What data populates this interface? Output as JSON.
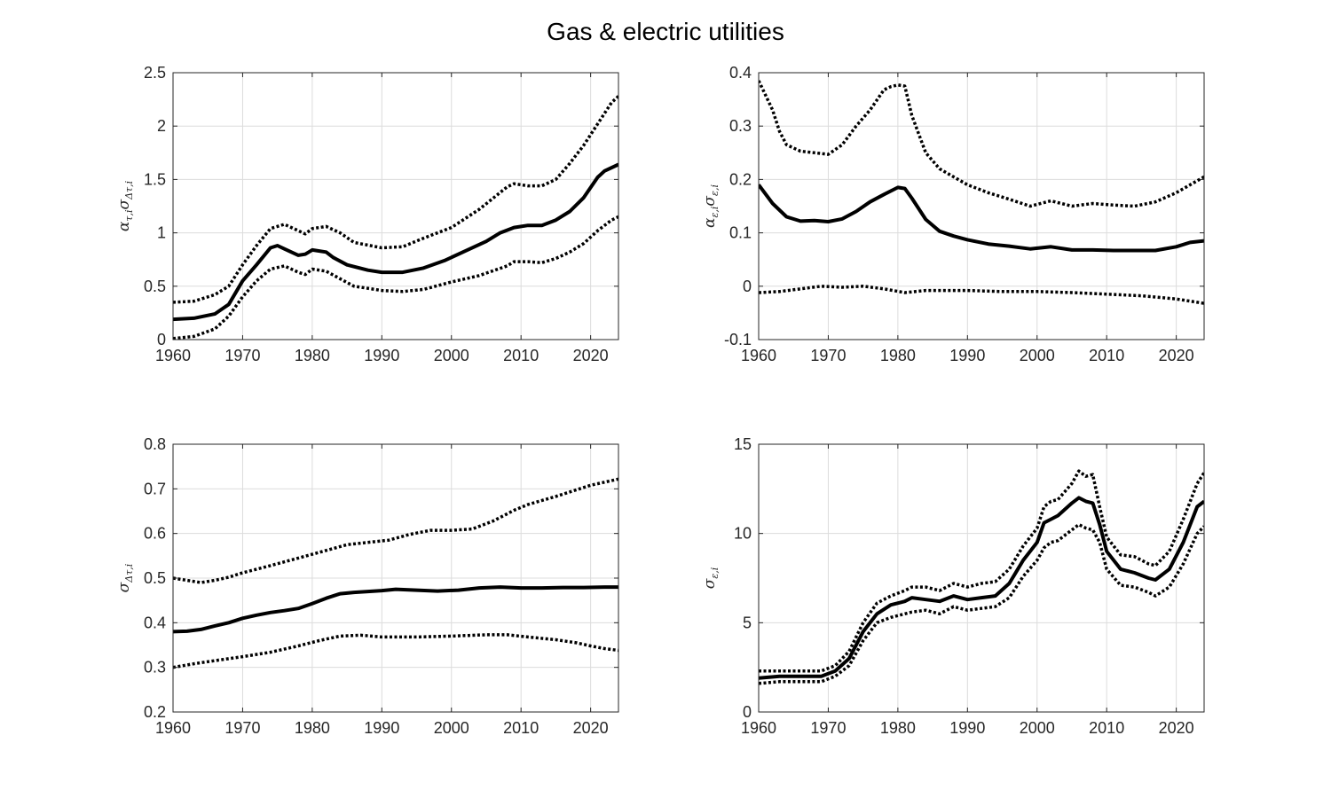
{
  "figure": {
    "title": "Gas & electric utilities"
  },
  "chart_data": [
    {
      "type": "line",
      "ylabel": "α_{τ,i} σ_{Δτ,i}",
      "ylabel_parts": [
        [
          "α",
          ""
        ],
        [
          "τ,i",
          "sub"
        ],
        [
          "σ",
          ""
        ],
        [
          "Δτ,i",
          "sub"
        ]
      ],
      "xlim": [
        1960,
        2024
      ],
      "ylim": [
        0,
        2.5
      ],
      "xticks": [
        1960,
        1970,
        1980,
        1990,
        2000,
        2010,
        2020
      ],
      "yticks": [
        0,
        0.5,
        1,
        1.5,
        2,
        2.5
      ],
      "ytick_labels": [
        "0",
        "0.5",
        "1",
        "1.5",
        "2",
        "2.5"
      ],
      "grid": true,
      "series": [
        {
          "style": "solid",
          "x": [
            1960,
            1963,
            1966,
            1968,
            1970,
            1972,
            1974,
            1975,
            1976,
            1978,
            1979,
            1980,
            1982,
            1983,
            1985,
            1988,
            1990,
            1993,
            1996,
            1999,
            2002,
            2005,
            2007,
            2009,
            2011,
            2013,
            2015,
            2017,
            2019,
            2021,
            2022,
            2024
          ],
          "y": [
            0.19,
            0.2,
            0.24,
            0.33,
            0.55,
            0.7,
            0.86,
            0.88,
            0.85,
            0.79,
            0.8,
            0.84,
            0.82,
            0.77,
            0.7,
            0.65,
            0.63,
            0.63,
            0.67,
            0.74,
            0.83,
            0.92,
            1.0,
            1.05,
            1.07,
            1.07,
            1.12,
            1.2,
            1.33,
            1.52,
            1.58,
            1.64
          ]
        },
        {
          "style": "dotted",
          "x": [
            1960,
            1963,
            1966,
            1968,
            1970,
            1972,
            1974,
            1976,
            1978,
            1979,
            1980,
            1982,
            1984,
            1986,
            1990,
            1993,
            1996,
            2000,
            2004,
            2008,
            2009,
            2011,
            2013,
            2015,
            2017,
            2019,
            2021,
            2023,
            2024
          ],
          "y": [
            0.35,
            0.36,
            0.42,
            0.5,
            0.7,
            0.88,
            1.04,
            1.08,
            1.02,
            0.99,
            1.04,
            1.06,
            1.0,
            0.91,
            0.86,
            0.87,
            0.95,
            1.05,
            1.22,
            1.43,
            1.46,
            1.44,
            1.44,
            1.5,
            1.65,
            1.82,
            2.02,
            2.22,
            2.28
          ]
        },
        {
          "style": "dotted",
          "x": [
            1960,
            1963,
            1966,
            1968,
            1970,
            1972,
            1974,
            1976,
            1978,
            1979,
            1980,
            1982,
            1984,
            1986,
            1990,
            1993,
            1996,
            2000,
            2004,
            2008,
            2009,
            2011,
            2013,
            2015,
            2017,
            2019,
            2021,
            2023,
            2024
          ],
          "y": [
            0.01,
            0.03,
            0.1,
            0.22,
            0.4,
            0.55,
            0.66,
            0.69,
            0.63,
            0.61,
            0.66,
            0.64,
            0.57,
            0.5,
            0.46,
            0.45,
            0.47,
            0.54,
            0.6,
            0.69,
            0.73,
            0.73,
            0.72,
            0.76,
            0.82,
            0.9,
            1.02,
            1.12,
            1.15
          ]
        }
      ]
    },
    {
      "type": "line",
      "ylabel": "α_{ε,i} σ_{ε,i}",
      "ylabel_parts": [
        [
          "α",
          ""
        ],
        [
          "ε,i",
          "sub"
        ],
        [
          "σ",
          ""
        ],
        [
          "ε,i",
          "sub"
        ]
      ],
      "xlim": [
        1960,
        2024
      ],
      "ylim": [
        -0.1,
        0.4
      ],
      "xticks": [
        1960,
        1970,
        1980,
        1990,
        2000,
        2010,
        2020
      ],
      "yticks": [
        -0.1,
        0,
        0.1,
        0.2,
        0.3,
        0.4
      ],
      "ytick_labels": [
        "-0.1",
        "0",
        "0.1",
        "0.2",
        "0.3",
        "0.4"
      ],
      "grid": true,
      "series": [
        {
          "style": "solid",
          "x": [
            1960,
            1962,
            1964,
            1966,
            1968,
            1970,
            1972,
            1974,
            1976,
            1978,
            1980,
            1981,
            1982,
            1984,
            1986,
            1988,
            1990,
            1993,
            1996,
            1999,
            2002,
            2005,
            2008,
            2011,
            2014,
            2017,
            2020,
            2022,
            2024
          ],
          "y": [
            0.19,
            0.155,
            0.13,
            0.122,
            0.123,
            0.121,
            0.126,
            0.14,
            0.158,
            0.172,
            0.185,
            0.183,
            0.165,
            0.125,
            0.103,
            0.094,
            0.087,
            0.079,
            0.075,
            0.07,
            0.074,
            0.068,
            0.068,
            0.067,
            0.067,
            0.067,
            0.074,
            0.082,
            0.085
          ]
        },
        {
          "style": "dotted",
          "x": [
            1960,
            1962,
            1963,
            1964,
            1966,
            1968,
            1970,
            1972,
            1974,
            1976,
            1978,
            1979,
            1980,
            1981,
            1982,
            1984,
            1986,
            1988,
            1990,
            1993,
            1996,
            1999,
            2002,
            2005,
            2008,
            2011,
            2014,
            2017,
            2020,
            2022,
            2024
          ],
          "y": [
            0.385,
            0.33,
            0.29,
            0.265,
            0.253,
            0.25,
            0.247,
            0.265,
            0.3,
            0.33,
            0.368,
            0.374,
            0.377,
            0.375,
            0.32,
            0.25,
            0.22,
            0.205,
            0.19,
            0.175,
            0.163,
            0.15,
            0.16,
            0.15,
            0.155,
            0.152,
            0.15,
            0.158,
            0.175,
            0.19,
            0.205
          ]
        },
        {
          "style": "dotted",
          "x": [
            1960,
            1963,
            1966,
            1969,
            1972,
            1975,
            1978,
            1981,
            1984,
            1987,
            1990,
            1995,
            2000,
            2005,
            2010,
            2015,
            2020,
            2024
          ],
          "y": [
            -0.012,
            -0.01,
            -0.005,
            0.0,
            -0.002,
            0.0,
            -0.005,
            -0.012,
            -0.008,
            -0.008,
            -0.008,
            -0.01,
            -0.01,
            -0.012,
            -0.015,
            -0.018,
            -0.024,
            -0.032
          ]
        }
      ]
    },
    {
      "type": "line",
      "ylabel": "σ_{Δτ,i}",
      "ylabel_parts": [
        [
          "σ",
          ""
        ],
        [
          "Δτ,i",
          "sub"
        ]
      ],
      "xlim": [
        1960,
        2024
      ],
      "ylim": [
        0.2,
        0.8
      ],
      "xticks": [
        1960,
        1970,
        1980,
        1990,
        2000,
        2010,
        2020
      ],
      "yticks": [
        0.2,
        0.3,
        0.4,
        0.5,
        0.6,
        0.7,
        0.8
      ],
      "ytick_labels": [
        "0.2",
        "0.3",
        "0.4",
        "0.5",
        "0.6",
        "0.7",
        "0.8"
      ],
      "grid": true,
      "series": [
        {
          "style": "solid",
          "x": [
            1960,
            1962,
            1964,
            1966,
            1968,
            1970,
            1972,
            1974,
            1976,
            1978,
            1980,
            1982,
            1984,
            1986,
            1988,
            1990,
            1992,
            1995,
            1998,
            2001,
            2004,
            2007,
            2010,
            2013,
            2016,
            2019,
            2022,
            2024
          ],
          "y": [
            0.38,
            0.381,
            0.385,
            0.393,
            0.4,
            0.41,
            0.417,
            0.423,
            0.427,
            0.432,
            0.443,
            0.455,
            0.465,
            0.468,
            0.47,
            0.472,
            0.475,
            0.473,
            0.471,
            0.473,
            0.478,
            0.48,
            0.478,
            0.478,
            0.479,
            0.479,
            0.48,
            0.48
          ]
        },
        {
          "style": "dotted",
          "x": [
            1960,
            1962,
            1964,
            1966,
            1968,
            1970,
            1974,
            1978,
            1982,
            1985,
            1988,
            1991,
            1994,
            1997,
            2000,
            2003,
            2006,
            2009,
            2011,
            2015,
            2020,
            2024
          ],
          "y": [
            0.5,
            0.495,
            0.49,
            0.495,
            0.502,
            0.512,
            0.528,
            0.545,
            0.562,
            0.575,
            0.58,
            0.585,
            0.598,
            0.607,
            0.607,
            0.61,
            0.628,
            0.652,
            0.665,
            0.683,
            0.708,
            0.722
          ]
        },
        {
          "style": "dotted",
          "x": [
            1960,
            1963,
            1966,
            1970,
            1974,
            1978,
            1981,
            1984,
            1987,
            1990,
            1995,
            2000,
            2005,
            2008,
            2011,
            2015,
            2018,
            2020,
            2022,
            2024
          ],
          "y": [
            0.3,
            0.308,
            0.315,
            0.324,
            0.334,
            0.348,
            0.36,
            0.37,
            0.372,
            0.368,
            0.368,
            0.37,
            0.373,
            0.373,
            0.368,
            0.362,
            0.355,
            0.348,
            0.342,
            0.338
          ]
        }
      ]
    },
    {
      "type": "line",
      "ylabel": "σ_{ε,i}",
      "ylabel_parts": [
        [
          "σ",
          ""
        ],
        [
          "ε,i",
          "sub"
        ]
      ],
      "xlim": [
        1960,
        2024
      ],
      "ylim": [
        0,
        15
      ],
      "xticks": [
        1960,
        1970,
        1980,
        1990,
        2000,
        2010,
        2020
      ],
      "yticks": [
        0,
        5,
        10,
        15
      ],
      "ytick_labels": [
        "0",
        "5",
        "10",
        "15"
      ],
      "grid": true,
      "series": [
        {
          "style": "solid",
          "x": [
            1960,
            1963,
            1966,
            1969,
            1971,
            1973,
            1975,
            1977,
            1979,
            1981,
            1982,
            1984,
            1986,
            1988,
            1990,
            1992,
            1994,
            1996,
            1998,
            2000,
            2001,
            2002,
            2003,
            2005,
            2006,
            2007,
            2008,
            2009,
            2010,
            2012,
            2014,
            2016,
            2017,
            2019,
            2021,
            2023,
            2024
          ],
          "y": [
            1.9,
            2.0,
            2.0,
            2.0,
            2.3,
            3.0,
            4.5,
            5.5,
            6.0,
            6.2,
            6.4,
            6.3,
            6.2,
            6.5,
            6.3,
            6.4,
            6.5,
            7.2,
            8.5,
            9.5,
            10.6,
            10.8,
            11.0,
            11.7,
            12.0,
            11.8,
            11.7,
            10.5,
            9.0,
            8.0,
            7.8,
            7.5,
            7.4,
            8.0,
            9.5,
            11.5,
            11.8
          ]
        },
        {
          "style": "dotted",
          "x": [
            1960,
            1963,
            1966,
            1969,
            1971,
            1973,
            1975,
            1977,
            1979,
            1981,
            1982,
            1984,
            1986,
            1988,
            1990,
            1992,
            1994,
            1996,
            1998,
            2000,
            2001,
            2002,
            2003,
            2005,
            2006,
            2007,
            2008,
            2009,
            2010,
            2012,
            2014,
            2016,
            2017,
            2019,
            2021,
            2023,
            2024
          ],
          "y": [
            2.3,
            2.3,
            2.3,
            2.3,
            2.6,
            3.4,
            5.0,
            6.1,
            6.5,
            6.8,
            7.0,
            7.0,
            6.8,
            7.2,
            7.0,
            7.2,
            7.3,
            8.0,
            9.3,
            10.3,
            11.5,
            11.8,
            11.9,
            12.8,
            13.5,
            13.2,
            13.3,
            11.5,
            9.8,
            8.8,
            8.7,
            8.3,
            8.2,
            9.0,
            10.8,
            12.8,
            13.4
          ]
        },
        {
          "style": "dotted",
          "x": [
            1960,
            1963,
            1966,
            1969,
            1971,
            1973,
            1975,
            1977,
            1979,
            1981,
            1982,
            1984,
            1986,
            1988,
            1990,
            1992,
            1994,
            1996,
            1998,
            2000,
            2001,
            2002,
            2003,
            2005,
            2006,
            2007,
            2008,
            2009,
            2010,
            2012,
            2014,
            2016,
            2017,
            2019,
            2021,
            2023,
            2024
          ],
          "y": [
            1.6,
            1.7,
            1.7,
            1.7,
            2.0,
            2.6,
            4.0,
            5.0,
            5.3,
            5.5,
            5.6,
            5.7,
            5.5,
            5.9,
            5.7,
            5.8,
            5.9,
            6.4,
            7.6,
            8.5,
            9.2,
            9.5,
            9.6,
            10.2,
            10.5,
            10.3,
            10.2,
            9.5,
            8.0,
            7.1,
            7.0,
            6.7,
            6.5,
            7.0,
            8.3,
            10.0,
            10.4
          ]
        }
      ]
    }
  ]
}
